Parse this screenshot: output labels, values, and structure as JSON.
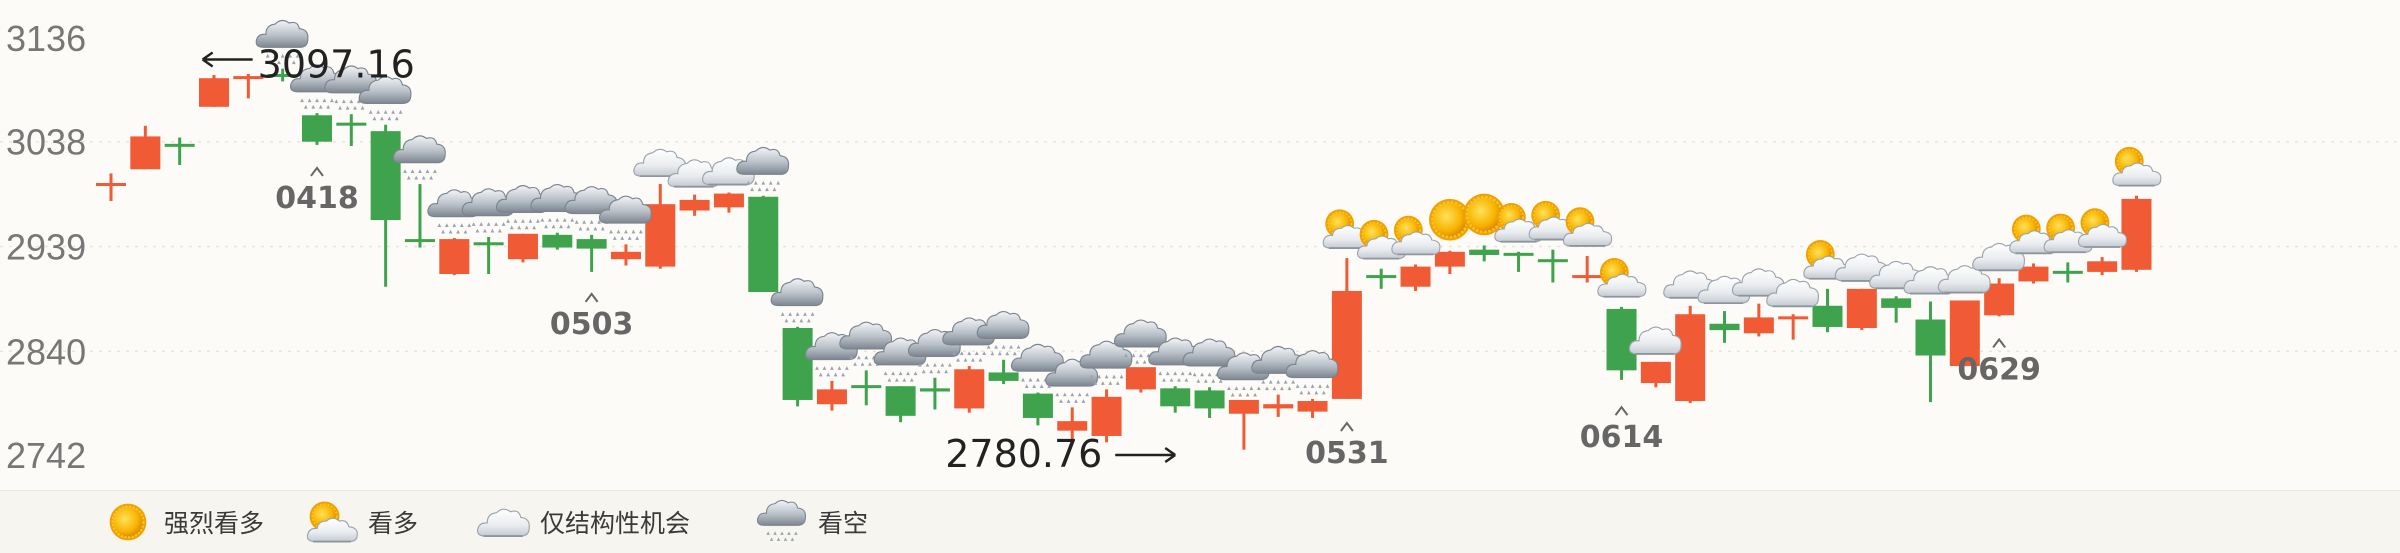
{
  "chart_data": {
    "type": "candlestick",
    "y_ticks": [
      "3136",
      "3038",
      "2939",
      "2840",
      "2742"
    ],
    "ylim": [
      2742,
      3136
    ],
    "grid": true,
    "colors": {
      "up": "#f05a35",
      "down": "#3fa34d"
    },
    "candles": [
      {
        "o": 2999,
        "h": 3008,
        "l": 2982,
        "c": 2999,
        "s": "none"
      },
      {
        "o": 3012,
        "h": 3053,
        "l": 3012,
        "c": 3043,
        "s": "none"
      },
      {
        "o": 3036,
        "h": 3042,
        "l": 3016,
        "c": 3034,
        "s": "none"
      },
      {
        "o": 3071,
        "h": 3101,
        "l": 3071,
        "c": 3098,
        "s": "none"
      },
      {
        "o": 3099,
        "h": 3102,
        "l": 3079,
        "c": 3100,
        "s": "none"
      },
      {
        "o": 3102,
        "h": 3107,
        "l": 3095,
        "c": 3100,
        "s": "rain"
      },
      {
        "o": 3063,
        "h": 3065,
        "l": 3035,
        "c": 3038,
        "s": "rain"
      },
      {
        "o": 3056,
        "h": 3064,
        "l": 3034,
        "c": 3055,
        "s": "rain"
      },
      {
        "o": 3048,
        "h": 3054,
        "l": 2901,
        "c": 2964,
        "s": "rain"
      },
      {
        "o": 2946,
        "h": 2998,
        "l": 2938,
        "c": 2945,
        "s": "rain"
      },
      {
        "o": 2913,
        "h": 2947,
        "l": 2912,
        "c": 2946,
        "s": "rain"
      },
      {
        "o": 2943,
        "h": 2948,
        "l": 2913,
        "c": 2941,
        "s": "rain"
      },
      {
        "o": 2927,
        "h": 2951,
        "l": 2924,
        "c": 2951,
        "s": "rain"
      },
      {
        "o": 2950,
        "h": 2952,
        "l": 2936,
        "c": 2938,
        "s": "rain"
      },
      {
        "o": 2946,
        "h": 2950,
        "l": 2915,
        "c": 2937,
        "s": "rain"
      },
      {
        "o": 2927,
        "h": 2941,
        "l": 2921,
        "c": 2934,
        "s": "rain"
      },
      {
        "o": 2920,
        "h": 2998,
        "l": 2918,
        "c": 2979,
        "s": "cloud"
      },
      {
        "o": 2973,
        "h": 2988,
        "l": 2968,
        "c": 2983,
        "s": "cloud"
      },
      {
        "o": 2976,
        "h": 2990,
        "l": 2971,
        "c": 2989,
        "s": "cloud"
      },
      {
        "o": 2986,
        "h": 2987,
        "l": 2896,
        "c": 2896,
        "s": "rain"
      },
      {
        "o": 2862,
        "h": 2863,
        "l": 2788,
        "c": 2794,
        "s": "rain"
      },
      {
        "o": 2790,
        "h": 2812,
        "l": 2784,
        "c": 2804,
        "s": "rain"
      },
      {
        "o": 2808,
        "h": 2822,
        "l": 2789,
        "c": 2806,
        "s": "rain"
      },
      {
        "o": 2807,
        "h": 2807,
        "l": 2773,
        "c": 2779,
        "s": "rain"
      },
      {
        "o": 2805,
        "h": 2815,
        "l": 2785,
        "c": 2802,
        "s": "rain"
      },
      {
        "o": 2786,
        "h": 2826,
        "l": 2782,
        "c": 2823,
        "s": "rain"
      },
      {
        "o": 2820,
        "h": 2832,
        "l": 2809,
        "c": 2812,
        "s": "rain"
      },
      {
        "o": 2800,
        "h": 2801,
        "l": 2770,
        "c": 2777,
        "s": "rain"
      },
      {
        "o": 2765,
        "h": 2787,
        "l": 2756,
        "c": 2774,
        "s": "rain"
      },
      {
        "o": 2760,
        "h": 2804,
        "l": 2754,
        "c": 2797,
        "s": "rain"
      },
      {
        "o": 2804,
        "h": 2824,
        "l": 2801,
        "c": 2825,
        "s": "rain"
      },
      {
        "o": 2805,
        "h": 2807,
        "l": 2782,
        "c": 2788,
        "s": "rain"
      },
      {
        "o": 2803,
        "h": 2806,
        "l": 2777,
        "c": 2786,
        "s": "rain"
      },
      {
        "o": 2781,
        "h": 2793,
        "l": 2747,
        "c": 2794,
        "s": "rain"
      },
      {
        "o": 2786,
        "h": 2799,
        "l": 2778,
        "c": 2790,
        "s": "rain"
      },
      {
        "o": 2783,
        "h": 2795,
        "l": 2777,
        "c": 2793,
        "s": "rain"
      },
      {
        "o": 2795,
        "h": 2928,
        "l": 2795,
        "c": 2897,
        "s": "sunny"
      },
      {
        "o": 2912,
        "h": 2918,
        "l": 2899,
        "c": 2911,
        "s": "sunny"
      },
      {
        "o": 2901,
        "h": 2922,
        "l": 2897,
        "c": 2920,
        "s": "sunny"
      },
      {
        "o": 2920,
        "h": 2935,
        "l": 2913,
        "c": 2934,
        "s": "strong"
      },
      {
        "o": 2936,
        "h": 2940,
        "l": 2925,
        "c": 2931,
        "s": "strong"
      },
      {
        "o": 2933,
        "h": 2934,
        "l": 2915,
        "c": 2931,
        "s": "sunny"
      },
      {
        "o": 2927,
        "h": 2936,
        "l": 2905,
        "c": 2926,
        "s": "sunny"
      },
      {
        "o": 2912,
        "h": 2930,
        "l": 2905,
        "c": 2912,
        "s": "sunny"
      },
      {
        "o": 2880,
        "h": 2882,
        "l": 2813,
        "c": 2822,
        "s": "sunny"
      },
      {
        "o": 2810,
        "h": 2830,
        "l": 2806,
        "c": 2830,
        "s": "cloud"
      },
      {
        "o": 2793,
        "h": 2883,
        "l": 2791,
        "c": 2875,
        "s": "cloud"
      },
      {
        "o": 2866,
        "h": 2878,
        "l": 2848,
        "c": 2860,
        "s": "cloud"
      },
      {
        "o": 2857,
        "h": 2885,
        "l": 2854,
        "c": 2872,
        "s": "cloud"
      },
      {
        "o": 2871,
        "h": 2875,
        "l": 2851,
        "c": 2873,
        "s": "cloud"
      },
      {
        "o": 2883,
        "h": 2899,
        "l": 2858,
        "c": 2863,
        "s": "sunny"
      },
      {
        "o": 2862,
        "h": 2899,
        "l": 2860,
        "c": 2899,
        "s": "cloud"
      },
      {
        "o": 2890,
        "h": 2892,
        "l": 2867,
        "c": 2881,
        "s": "cloud"
      },
      {
        "o": 2870,
        "h": 2887,
        "l": 2792,
        "c": 2836,
        "s": "cloud"
      },
      {
        "o": 2826,
        "h": 2888,
        "l": 2826,
        "c": 2888,
        "s": "cloud"
      },
      {
        "o": 2874,
        "h": 2909,
        "l": 2873,
        "c": 2904,
        "s": "cloud"
      },
      {
        "o": 2906,
        "h": 2923,
        "l": 2904,
        "c": 2920,
        "s": "sunny"
      },
      {
        "o": 2916,
        "h": 2924,
        "l": 2905,
        "c": 2915,
        "s": "sunny"
      },
      {
        "o": 2915,
        "h": 2929,
        "l": 2912,
        "c": 2925,
        "s": "sunny"
      },
      {
        "o": 2917,
        "h": 2987,
        "l": 2915,
        "c": 2984,
        "s": "sunny"
      }
    ],
    "annotations": [
      {
        "text": "0418",
        "index": 6,
        "y": 3034
      },
      {
        "text": "0503",
        "index": 14,
        "y": 2915
      },
      {
        "text": "0531",
        "index": 36,
        "y": 2793
      },
      {
        "text": "0614",
        "index": 44,
        "y": 2808
      },
      {
        "text": "0629",
        "index": 55,
        "y": 2872
      }
    ],
    "extremes": [
      {
        "text": "3097.16",
        "index": 5,
        "y": 3110,
        "arrow": "left"
      },
      {
        "text": "2780.76",
        "index": 31,
        "y": 2742,
        "arrow": "right"
      }
    ]
  },
  "legend": [
    {
      "icon": "sun-icon",
      "label": "强烈看多"
    },
    {
      "icon": "sun-cloud-icon",
      "label": "看多"
    },
    {
      "icon": "cloud-icon",
      "label": "仅结构性机会"
    },
    {
      "icon": "rain-cloud-icon",
      "label": "看空"
    }
  ]
}
